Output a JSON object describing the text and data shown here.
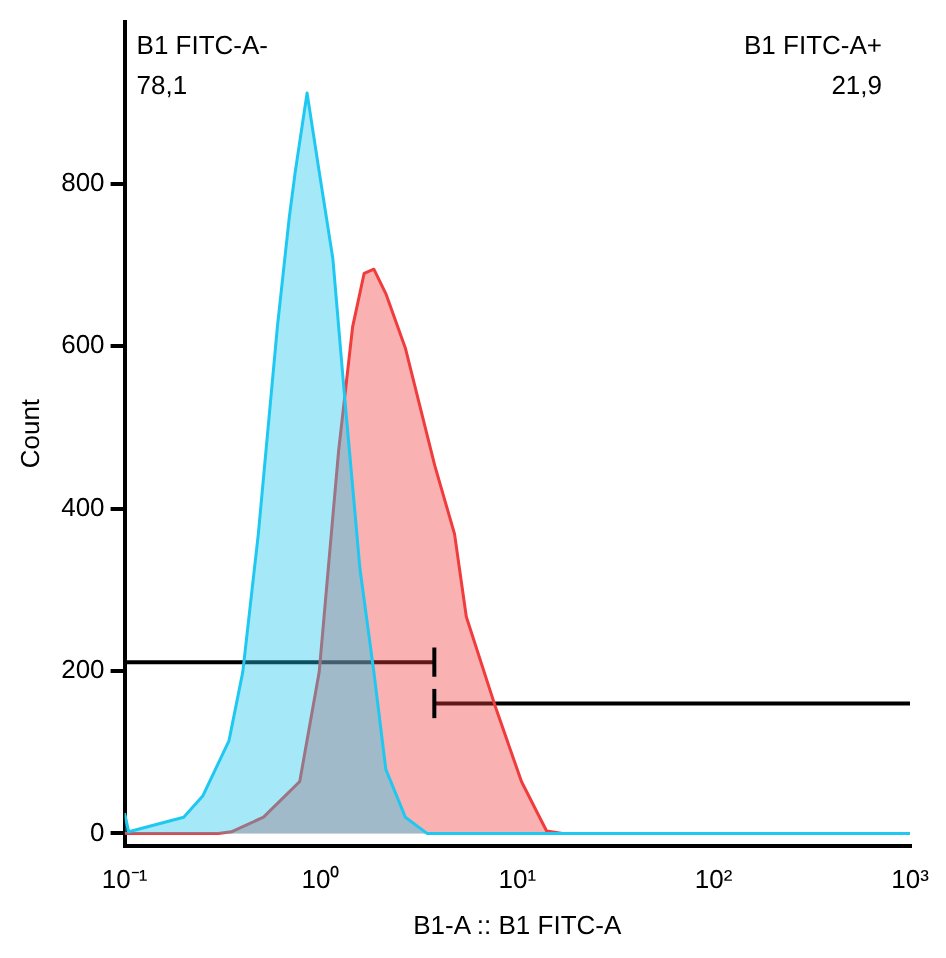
{
  "chart_data": {
    "type": "area",
    "xlabel": "B1-A :: B1 FITC-A",
    "ylabel": "Count",
    "log": "x",
    "xlim": [
      0.1,
      1000
    ],
    "xticks": [
      {
        "value": 0.1,
        "label": "10⁻¹"
      },
      {
        "value": 1,
        "label": "10⁰"
      },
      {
        "value": 10,
        "label": "10¹"
      },
      {
        "value": 100,
        "label": "10²"
      },
      {
        "value": 1000,
        "label": "10³"
      }
    ],
    "ylim": [
      -15,
      1000
    ],
    "yticks": [
      0,
      200,
      400,
      600,
      800
    ],
    "grid": false,
    "legend": false,
    "series": [
      {
        "color": "#1ec8f0",
        "x": [
          0.1,
          0.105,
          0.2,
          0.25,
          0.34,
          0.4,
          0.48,
          0.6,
          0.69,
          0.74,
          0.85,
          0.98,
          1.15,
          1.32,
          1.58,
          1.86,
          2.14,
          2.69,
          3.47,
          1000
        ],
        "values": [
          25,
          2,
          20,
          46,
          114,
          199,
          369,
          624,
          759,
          815,
          912,
          815,
          708,
          538,
          326,
          199,
          79,
          20,
          0,
          0
        ]
      },
      {
        "color": "#f03c3c",
        "x": [
          0.1,
          0.3,
          0.35,
          0.51,
          0.78,
          0.98,
          1.23,
          1.45,
          1.66,
          1.86,
          2.14,
          2.69,
          3.8,
          4.79,
          5.5,
          7.76,
          10.5,
          14.1,
          17,
          1000
        ],
        "values": [
          0,
          0,
          2,
          20,
          64,
          199,
          471,
          624,
          690,
          695,
          665,
          598,
          453,
          369,
          267,
          155,
          64,
          3,
          0,
          0
        ]
      },
      {
        "type": "line",
        "color": "#000000",
        "x": [
          0.1,
          3.78
        ],
        "values": [
          211,
          211
        ],
        "errors": [
          null,
          18
        ]
      },
      {
        "type": "line",
        "color": "#000000",
        "x": [
          3.78,
          1000
        ],
        "values": [
          160,
          160
        ],
        "errors": [
          18,
          null
        ]
      }
    ],
    "annotations": [
      "B1 FITC-A-",
      "78,1",
      "B1 FITC-A+",
      "21,9"
    ]
  }
}
